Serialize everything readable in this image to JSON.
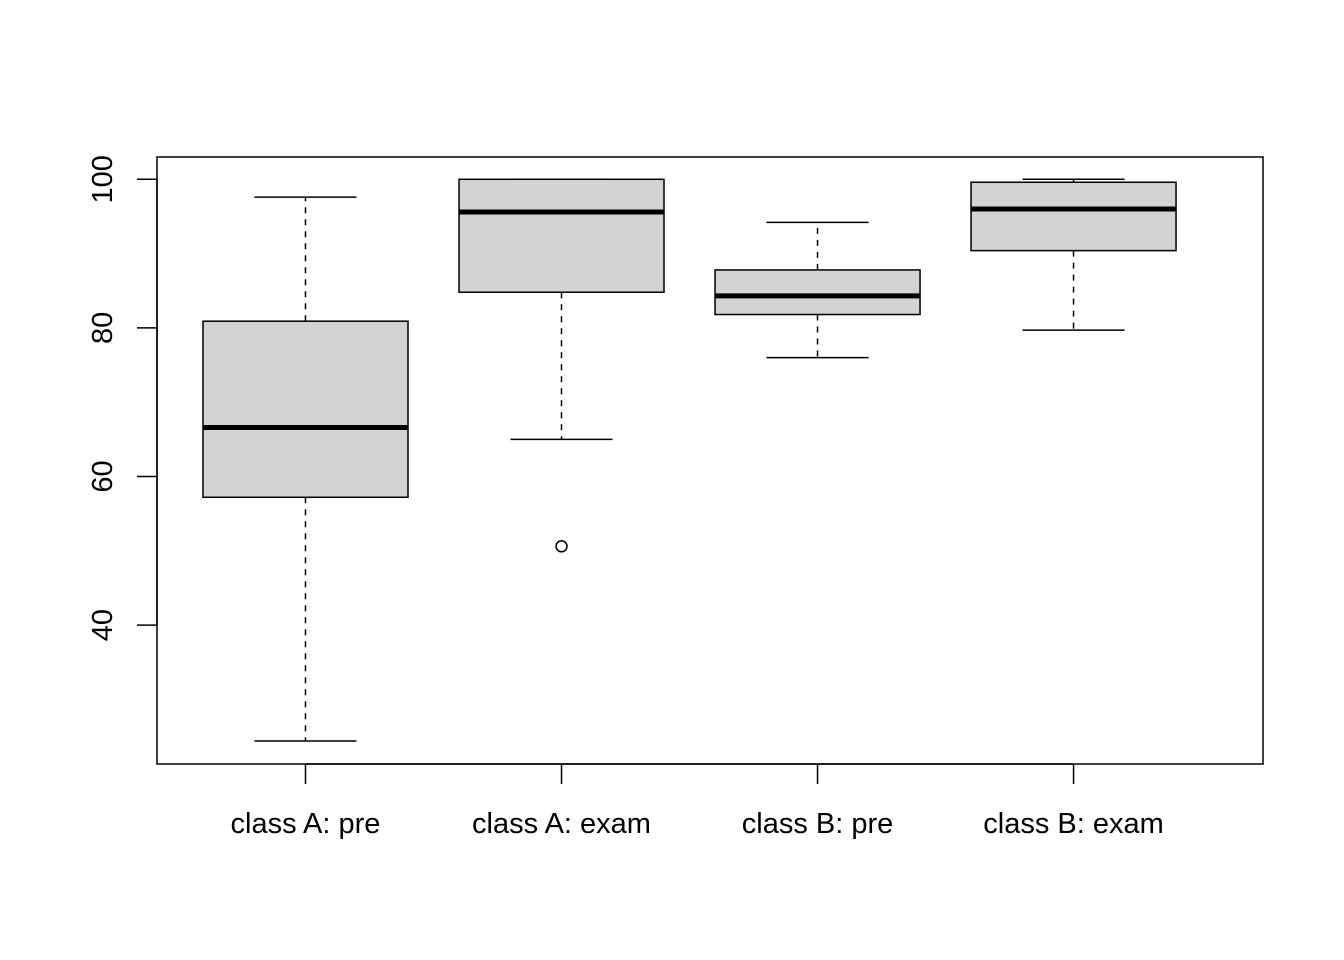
{
  "chart_data": {
    "type": "boxplot",
    "title": "",
    "xlabel": "",
    "ylabel": "",
    "categories": [
      "class A: pre",
      "class A: exam",
      "class B: pre",
      "class B: exam"
    ],
    "boxes": [
      {
        "label": "class A: pre",
        "whisker_low": 24.4,
        "q1": 57.2,
        "median": 66.6,
        "q3": 80.9,
        "whisker_high": 97.6,
        "outliers": []
      },
      {
        "label": "class A: exam",
        "whisker_low": 65.0,
        "q1": 84.8,
        "median": 95.6,
        "q3": 100.0,
        "whisker_high": 100.0,
        "outliers": [
          50.6
        ]
      },
      {
        "label": "class B: pre",
        "whisker_low": 76.0,
        "q1": 81.8,
        "median": 84.3,
        "q3": 87.8,
        "whisker_high": 94.2,
        "outliers": []
      },
      {
        "label": "class B: exam",
        "whisker_low": 79.7,
        "q1": 90.4,
        "median": 96.0,
        "q3": 99.6,
        "whisker_high": 100.0,
        "outliers": []
      }
    ],
    "ylim": [
      21.3,
      103
    ],
    "yticks": [
      40,
      60,
      80,
      100
    ],
    "grid": false,
    "box_fill": "#d3d3d3"
  }
}
